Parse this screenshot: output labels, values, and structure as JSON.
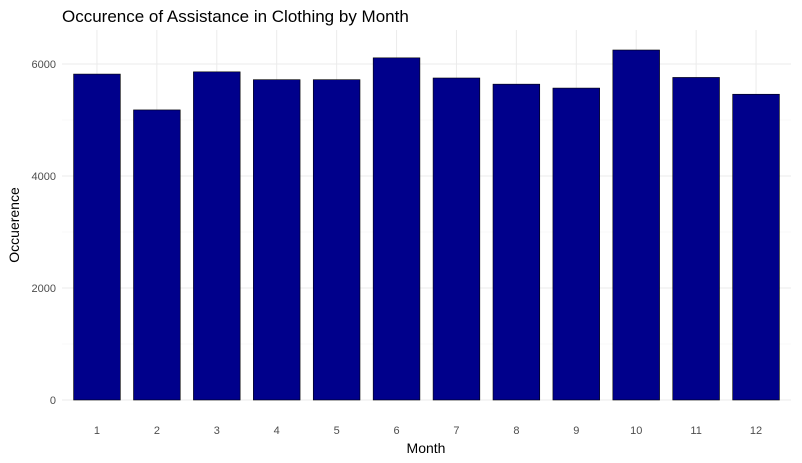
{
  "chart_data": {
    "type": "bar",
    "title": "Occurence of Assistance in Clothing by Month",
    "xlabel": "Month",
    "ylabel": "Occuerence",
    "categories": [
      "1",
      "2",
      "3",
      "4",
      "5",
      "6",
      "7",
      "8",
      "9",
      "10",
      "11",
      "12"
    ],
    "values": [
      5820,
      5180,
      5860,
      5720,
      5720,
      6110,
      5750,
      5640,
      5570,
      6250,
      5760,
      5460
    ],
    "ylim": [
      0,
      6500
    ],
    "yticks": [
      0,
      2000,
      4000,
      6000
    ],
    "grid": true,
    "bar_color": "#00008b"
  }
}
